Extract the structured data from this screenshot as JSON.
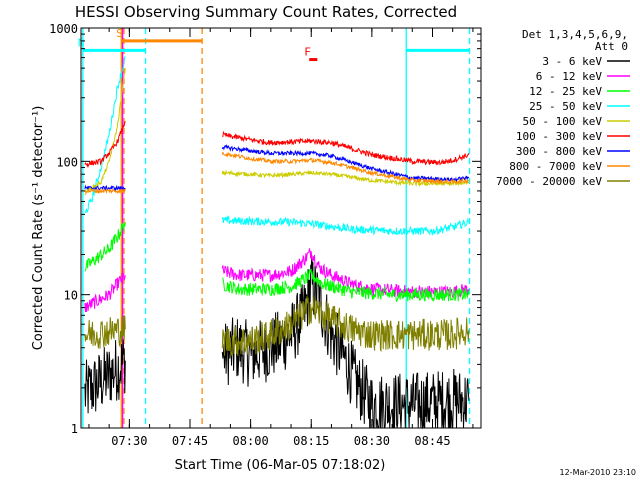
{
  "chart_data": {
    "type": "line",
    "title": "HESSI Observing Summary Count Rates, Corrected",
    "xlabel": "Start Time (06-Mar-05 07:18:02)",
    "ylabel": "Corrected Count Rate (s⁻¹ detector⁻¹)",
    "yscale": "log",
    "ylim": [
      1,
      1000
    ],
    "y_ticks": [
      {
        "v": 1,
        "label": "1"
      },
      {
        "v": 10,
        "label": "10"
      },
      {
        "v": 100,
        "label": "100"
      },
      {
        "v": 1000,
        "label": "1000"
      }
    ],
    "xlim": [
      "07:18:02",
      "08:57:00"
    ],
    "x_ticks": [
      {
        "t": "07:30",
        "label": "07:30"
      },
      {
        "t": "07:45",
        "label": "07:45"
      },
      {
        "t": "08:00",
        "label": "08:00"
      },
      {
        "t": "08:15",
        "label": "08:15"
      },
      {
        "t": "08:30",
        "label": "08:30"
      },
      {
        "t": "08:45",
        "label": "08:45"
      }
    ],
    "legend": {
      "placement": "right",
      "header": [
        "Det 1,3,4,5,6,9,",
        "Att 0"
      ]
    },
    "series": [
      {
        "name": "3 - 6 keV",
        "color": "#000000",
        "noise": 0.25,
        "points": [
          [
            "07:19",
            1.8
          ],
          [
            "07:25",
            2.5
          ],
          [
            "07:27",
            2.8
          ],
          [
            "07:29",
            3.2
          ],
          [
            "07:53",
            3.5
          ],
          [
            "07:57",
            4.0
          ],
          [
            "08:00",
            3.5
          ],
          [
            "08:05",
            4.0
          ],
          [
            "08:10",
            5.0
          ],
          [
            "08:13",
            7.0
          ],
          [
            "08:15",
            12.0
          ],
          [
            "08:17",
            9.0
          ],
          [
            "08:20",
            5.0
          ],
          [
            "08:24",
            3.0
          ],
          [
            "08:26",
            2.2
          ],
          [
            "08:30",
            1.5
          ],
          [
            "08:40",
            1.5
          ],
          [
            "08:50",
            1.6
          ],
          [
            "08:54",
            1.6
          ]
        ]
      },
      {
        "name": "6 - 12 keV",
        "color": "#ff00ff",
        "noise": 0.05,
        "points": [
          [
            "07:19",
            8.0
          ],
          [
            "07:25",
            10.0
          ],
          [
            "07:27",
            12.0
          ],
          [
            "07:29",
            14.0
          ],
          [
            "07:53",
            15.0
          ],
          [
            "07:57",
            14.0
          ],
          [
            "08:05",
            14.0
          ],
          [
            "08:10",
            15.0
          ],
          [
            "08:13",
            18.0
          ],
          [
            "08:15",
            21.0
          ],
          [
            "08:17",
            16.0
          ],
          [
            "08:20",
            14.0
          ],
          [
            "08:25",
            12.0
          ],
          [
            "08:30",
            11.0
          ],
          [
            "08:40",
            10.5
          ],
          [
            "08:50",
            10.5
          ],
          [
            "08:54",
            11.0
          ]
        ]
      },
      {
        "name": "12 - 25 keV",
        "color": "#00ff00",
        "noise": 0.05,
        "points": [
          [
            "07:19",
            16.0
          ],
          [
            "07:25",
            22.0
          ],
          [
            "07:27",
            27.0
          ],
          [
            "07:29",
            35.0
          ],
          [
            "07:53",
            12.0
          ],
          [
            "07:57",
            11.0
          ],
          [
            "08:05",
            11.0
          ],
          [
            "08:10",
            11.5
          ],
          [
            "08:15",
            14.0
          ],
          [
            "08:18",
            12.0
          ],
          [
            "08:25",
            10.5
          ],
          [
            "08:35",
            10.0
          ],
          [
            "08:45",
            10.0
          ],
          [
            "08:54",
            10.0
          ]
        ]
      },
      {
        "name": "25 - 50 keV",
        "color": "#00ffff",
        "noise": 0.03,
        "points": [
          [
            "07:19",
            40.0
          ],
          [
            "07:21",
            55.0
          ],
          [
            "07:23",
            90.0
          ],
          [
            "07:25",
            160.0
          ],
          [
            "07:27",
            350.0
          ],
          [
            "07:29",
            600.0
          ],
          [
            "07:53",
            36.0
          ],
          [
            "08:00",
            35.5
          ],
          [
            "08:10",
            35.0
          ],
          [
            "08:15",
            34.0
          ],
          [
            "08:25",
            31.0
          ],
          [
            "08:35",
            30.0
          ],
          [
            "08:45",
            30.0
          ],
          [
            "08:50",
            32.0
          ],
          [
            "08:54",
            35.0
          ]
        ]
      },
      {
        "name": "50 - 100 keV",
        "color": "#cccc00",
        "noise": 0.015,
        "points": [
          [
            "07:19",
            58.0
          ],
          [
            "07:23",
            70.0
          ],
          [
            "07:25",
            100.0
          ],
          [
            "07:27",
            180.0
          ],
          [
            "07:29",
            500.0
          ],
          [
            "07:53",
            82.0
          ],
          [
            "08:00",
            80.0
          ],
          [
            "08:05",
            78.0
          ],
          [
            "08:10",
            80.0
          ],
          [
            "08:15",
            82.0
          ],
          [
            "08:20",
            80.0
          ],
          [
            "08:30",
            72.0
          ],
          [
            "08:40",
            68.0
          ],
          [
            "08:50",
            68.0
          ],
          [
            "08:54",
            70.0
          ]
        ]
      },
      {
        "name": "100 - 300 keV",
        "color": "#ff0000",
        "noise": 0.02,
        "points": [
          [
            "07:19",
            95.0
          ],
          [
            "07:23",
            100.0
          ],
          [
            "07:25",
            115.0
          ],
          [
            "07:27",
            140.0
          ],
          [
            "07:29",
            200.0
          ],
          [
            "07:53",
            158.0
          ],
          [
            "08:00",
            145.0
          ],
          [
            "08:05",
            138.0
          ],
          [
            "08:10",
            140.0
          ],
          [
            "08:15",
            142.0
          ],
          [
            "08:20",
            138.0
          ],
          [
            "08:30",
            112.0
          ],
          [
            "08:40",
            100.0
          ],
          [
            "08:47",
            98.0
          ],
          [
            "08:50",
            102.0
          ],
          [
            "08:54",
            112.0
          ]
        ]
      },
      {
        "name": "300 - 800 keV",
        "color": "#0000ff",
        "noise": 0.015,
        "points": [
          [
            "07:19",
            63.0
          ],
          [
            "07:29",
            63.0
          ],
          [
            "07:53",
            128.0
          ],
          [
            "08:00",
            120.0
          ],
          [
            "08:05",
            115.0
          ],
          [
            "08:10",
            115.0
          ],
          [
            "08:15",
            115.0
          ],
          [
            "08:20",
            110.0
          ],
          [
            "08:30",
            88.0
          ],
          [
            "08:40",
            75.0
          ],
          [
            "08:50",
            73.0
          ],
          [
            "08:54",
            75.0
          ]
        ]
      },
      {
        "name": "800 - 7000 keV",
        "color": "#ff8800",
        "noise": 0.015,
        "points": [
          [
            "07:19",
            60.0
          ],
          [
            "07:29",
            60.0
          ],
          [
            "07:53",
            115.0
          ],
          [
            "08:00",
            105.0
          ],
          [
            "08:05",
            100.0
          ],
          [
            "08:10",
            100.0
          ],
          [
            "08:15",
            102.0
          ],
          [
            "08:20",
            98.0
          ],
          [
            "08:30",
            82.0
          ],
          [
            "08:40",
            72.0
          ],
          [
            "08:50",
            70.0
          ],
          [
            "08:54",
            72.0
          ]
        ]
      },
      {
        "name": "7000 - 20000 keV",
        "color": "#808000",
        "noise": 0.12,
        "points": [
          [
            "07:19",
            5.0
          ],
          [
            "07:29",
            5.5
          ],
          [
            "07:53",
            4.5
          ],
          [
            "08:00",
            4.5
          ],
          [
            "08:05",
            5.0
          ],
          [
            "08:10",
            6.0
          ],
          [
            "08:15",
            8.0
          ],
          [
            "08:20",
            6.5
          ],
          [
            "08:25",
            5.5
          ],
          [
            "08:30",
            5.0
          ],
          [
            "08:40",
            5.0
          ],
          [
            "08:50",
            5.0
          ],
          [
            "08:54",
            5.5
          ]
        ]
      }
    ],
    "markers": [
      {
        "type": "vline",
        "t": "07:28:00",
        "color": "#ff8800",
        "style": "solid"
      },
      {
        "type": "vline",
        "t": "07:28:40",
        "color": "#ff8800",
        "style": "dashed"
      },
      {
        "type": "vline",
        "t": "07:28:20",
        "color": "#ff00ff",
        "style": "solid"
      },
      {
        "type": "vline",
        "t": "07:48:00",
        "color": "#ff8800",
        "style": "dashed"
      },
      {
        "type": "vline",
        "t": "07:18:30",
        "color": "#00ffff",
        "style": "solid"
      },
      {
        "type": "vline",
        "t": "07:34:00",
        "color": "#00ffff",
        "style": "dashed"
      },
      {
        "type": "vline",
        "t": "08:38:30",
        "color": "#00ffff",
        "style": "solid"
      },
      {
        "type": "vline",
        "t": "08:54:10",
        "color": "#00ffff",
        "style": "dashed"
      }
    ],
    "bars": [
      {
        "label": "S",
        "from": "07:28:00",
        "to": "07:48:00",
        "color": "#ff8800",
        "y": 800
      },
      {
        "label": "N",
        "from": "07:18:30",
        "to": "07:34:00",
        "color": "#00ffff",
        "y": 680
      },
      {
        "label": "",
        "from": "08:38:30",
        "to": "08:54:10",
        "color": "#00ffff",
        "y": 680
      },
      {
        "label": "F",
        "from": "08:14:30",
        "to": "08:16:30",
        "color": "#ff0000",
        "y": 580
      }
    ],
    "gap": [
      "07:29:30",
      "07:52:30"
    ]
  },
  "footer_date": "12-Mar-2010 23:10"
}
